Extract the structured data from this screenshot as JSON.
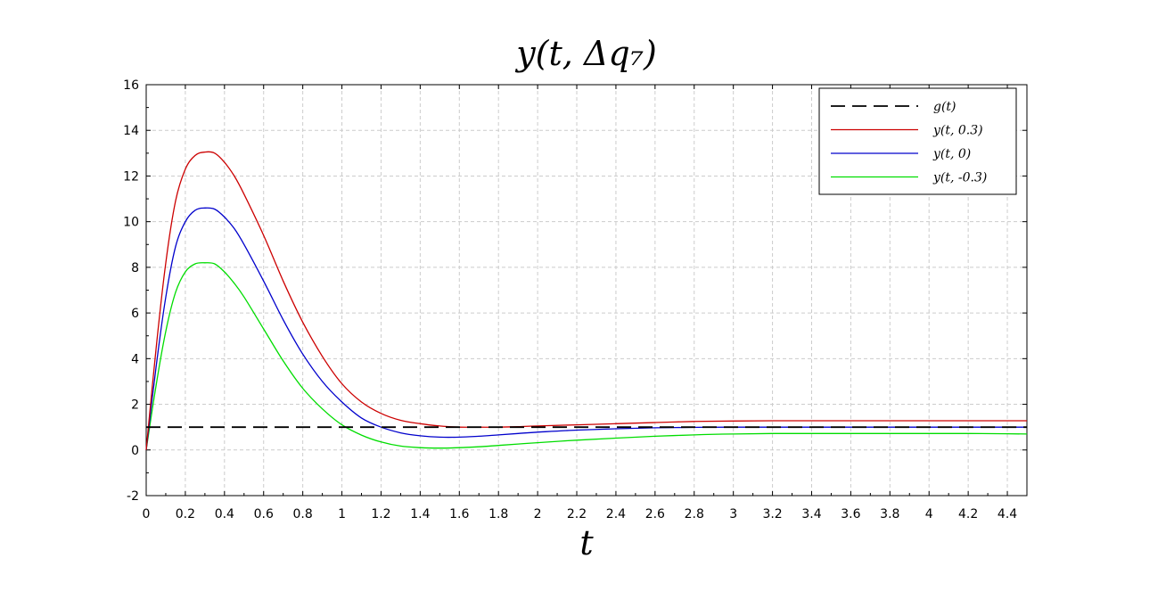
{
  "chart_data": {
    "type": "line",
    "title": "y(t, Δq₇)",
    "xlabel": "t",
    "ylabel": "",
    "xlim": [
      0,
      4.5
    ],
    "ylim": [
      -2,
      16
    ],
    "xticks": [
      "0",
      "0.2",
      "0.4",
      "0.6",
      "0.8",
      "1",
      "1.2",
      "1.4",
      "1.6",
      "1.8",
      "2",
      "2.2",
      "2.4",
      "2.6",
      "2.8",
      "3",
      "3.2",
      "3.4",
      "3.6",
      "3.8",
      "4",
      "4.2",
      "4.4"
    ],
    "yticks": [
      "-2",
      "0",
      "2",
      "4",
      "6",
      "8",
      "10",
      "12",
      "14",
      "16"
    ],
    "grid": true,
    "legend_position": "top-right",
    "x": [
      0,
      0.05,
      0.1,
      0.15,
      0.2,
      0.25,
      0.3,
      0.35,
      0.4,
      0.45,
      0.5,
      0.6,
      0.7,
      0.8,
      0.9,
      1.0,
      1.1,
      1.2,
      1.3,
      1.4,
      1.5,
      1.6,
      1.7,
      1.8,
      1.9,
      2.0,
      2.2,
      2.4,
      2.6,
      2.8,
      3.0,
      3.2,
      3.4,
      3.6,
      3.8,
      4.0,
      4.2,
      4.4,
      4.5
    ],
    "series": [
      {
        "name": "g(t)",
        "color": "#000000",
        "dash": "dashed",
        "values": [
          1,
          1,
          1,
          1,
          1,
          1,
          1,
          1,
          1,
          1,
          1,
          1,
          1,
          1,
          1,
          1,
          1,
          1,
          1,
          1,
          1,
          1,
          1,
          1,
          1,
          1,
          1,
          1,
          1,
          1,
          1,
          1,
          1,
          1,
          1,
          1,
          1,
          1,
          1
        ]
      },
      {
        "name": "y(t, 0.3)",
        "color": "#cc0000",
        "dash": "solid",
        "values": [
          0,
          4.4,
          8.2,
          10.9,
          12.3,
          12.9,
          13.05,
          13.0,
          12.6,
          12.0,
          11.2,
          9.4,
          7.4,
          5.6,
          4.1,
          2.9,
          2.1,
          1.6,
          1.3,
          1.15,
          1.05,
          1.0,
          1.0,
          1.0,
          1.02,
          1.05,
          1.1,
          1.15,
          1.2,
          1.25,
          1.27,
          1.28,
          1.28,
          1.28,
          1.28,
          1.28,
          1.28,
          1.28,
          1.28
        ]
      },
      {
        "name": "y(t, 0)",
        "color": "#0000cc",
        "dash": "solid",
        "values": [
          0,
          3.6,
          6.7,
          8.9,
          10.0,
          10.5,
          10.6,
          10.55,
          10.2,
          9.7,
          9.0,
          7.4,
          5.7,
          4.2,
          3.0,
          2.1,
          1.4,
          1.0,
          0.75,
          0.62,
          0.56,
          0.56,
          0.6,
          0.66,
          0.72,
          0.78,
          0.87,
          0.93,
          0.97,
          0.99,
          1.0,
          1.0,
          1.0,
          1.0,
          1.0,
          1.0,
          1.0,
          1.0,
          1.0
        ]
      },
      {
        "name": "y(t, -0.3)",
        "color": "#00dd00",
        "dash": "solid",
        "values": [
          0,
          2.8,
          5.2,
          6.9,
          7.8,
          8.15,
          8.2,
          8.15,
          7.8,
          7.3,
          6.7,
          5.3,
          3.9,
          2.7,
          1.8,
          1.1,
          0.65,
          0.35,
          0.17,
          0.1,
          0.08,
          0.1,
          0.14,
          0.2,
          0.26,
          0.32,
          0.43,
          0.52,
          0.6,
          0.66,
          0.7,
          0.72,
          0.72,
          0.72,
          0.72,
          0.72,
          0.72,
          0.71,
          0.7
        ]
      }
    ]
  }
}
